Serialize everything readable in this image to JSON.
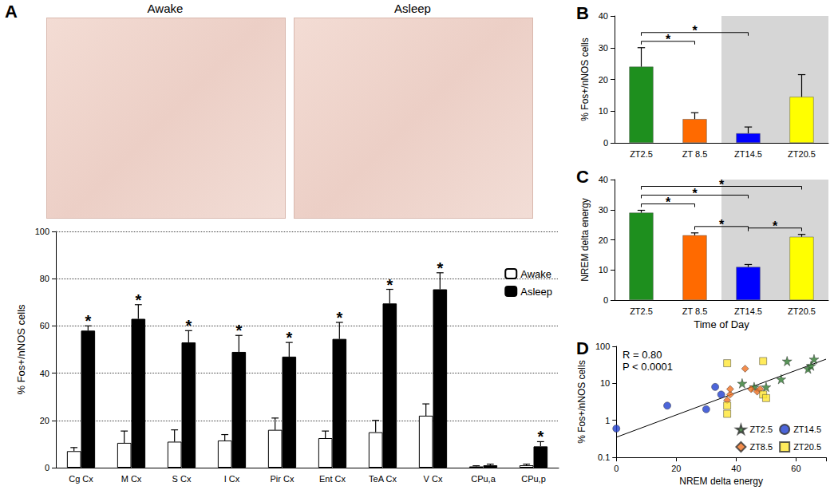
{
  "chart_data": [
    {
      "type": "bar",
      "title": "A",
      "image_titles": [
        "Awake",
        "Asleep"
      ],
      "categories": [
        "Cg Cx",
        "M Cx",
        "S Cx",
        "I Cx",
        "Pir Cx",
        "Ent Cx",
        "TeA Cx",
        "V Cx",
        "CPu,a",
        "CPu,p"
      ],
      "y_label": "% Fos+/nNOS cells",
      "series": [
        {
          "name": "Awake",
          "color": "#ffffff",
          "values": [
            7,
            10.5,
            11,
            11.5,
            16,
            12.5,
            15,
            22,
            0.5,
            1
          ],
          "errors": [
            1.5,
            5,
            5,
            2.5,
            5,
            3,
            5,
            5,
            0.3,
            0.5
          ]
        },
        {
          "name": "Asleep",
          "color": "#000000",
          "values": [
            58,
            63,
            53,
            49,
            47,
            54.5,
            69.5,
            75.5,
            1,
            9
          ],
          "errors": [
            2,
            6,
            5,
            7,
            6,
            7,
            6,
            7,
            0.5,
            2
          ],
          "significance": [
            "*",
            "*",
            "*",
            "*",
            "*",
            "*",
            "*",
            "*",
            null,
            "*"
          ]
        }
      ],
      "ylim": [
        0,
        100
      ],
      "yticks": [
        0,
        20,
        40,
        60,
        80,
        100
      ],
      "grid": true,
      "legend": "right"
    },
    {
      "type": "bar",
      "title": "B",
      "categories": [
        "ZT2.5",
        "ZT 8.5",
        "ZT14.5",
        "ZT20.5"
      ],
      "values": [
        24,
        7.5,
        3,
        14.5
      ],
      "errors": [
        6,
        2,
        2,
        7
      ],
      "colors": [
        "#1e8f1e",
        "#ff6a00",
        "#0000ff",
        "#ffff00"
      ],
      "y_label": "% Fos+/nNOS cells",
      "ylim": [
        0,
        40
      ],
      "yticks": [
        0,
        10,
        20,
        30,
        40
      ],
      "shaded": [
        "ZT14.5",
        "ZT20.5"
      ],
      "comparisons": [
        {
          "pair": [
            "ZT2.5",
            "ZT 8.5"
          ],
          "label": "*"
        },
        {
          "pair": [
            "ZT2.5",
            "ZT14.5"
          ],
          "label": "*"
        }
      ]
    },
    {
      "type": "bar",
      "title": "C",
      "categories": [
        "ZT2.5",
        "ZT 8.5",
        "ZT14.5",
        "ZT20.5"
      ],
      "values": [
        29,
        21.5,
        11,
        21
      ],
      "errors": [
        0.8,
        0.8,
        0.8,
        0.8
      ],
      "colors": [
        "#1e8f1e",
        "#ff6a00",
        "#0000ff",
        "#ffff00"
      ],
      "y_label": "NREM delta energy",
      "x_label": "Time of Day",
      "ylim": [
        0,
        40
      ],
      "yticks": [
        0,
        10,
        20,
        30,
        40
      ],
      "shaded": [
        "ZT14.5",
        "ZT20.5"
      ],
      "comparisons": [
        {
          "pair": [
            "ZT2.5",
            "ZT 8.5"
          ],
          "label": "*"
        },
        {
          "pair": [
            "ZT2.5",
            "ZT14.5"
          ],
          "label": "*"
        },
        {
          "pair": [
            "ZT2.5",
            "ZT20.5"
          ],
          "label": "*"
        },
        {
          "pair": [
            "ZT 8.5",
            "ZT14.5"
          ],
          "label": "*"
        },
        {
          "pair": [
            "ZT14.5",
            "ZT20.5"
          ],
          "label": "*"
        }
      ]
    },
    {
      "type": "scatter",
      "title": "D",
      "x_label": "NREM delta energy",
      "y_label": "% Fos+/nNOS cells",
      "log": "y",
      "xlim": [
        0,
        70
      ],
      "xticks": [
        0,
        20,
        40,
        60
      ],
      "ylim": [
        0.1,
        100
      ],
      "yticks": [
        0.1,
        1,
        10,
        100
      ],
      "annotations": [
        "R = 0.80",
        "P < 0.0001"
      ],
      "legend": "lower right",
      "series": [
        {
          "name": "ZT2.5",
          "color": "#2e7a2e",
          "marker": "star",
          "x": [
            42,
            46,
            50,
            55,
            57,
            64,
            65,
            66
          ],
          "y": [
            10,
            8,
            8,
            13,
            40,
            25,
            30,
            45
          ]
        },
        {
          "name": "ZT14.5",
          "color": "#1f3fcf",
          "marker": "circle",
          "x": [
            0,
            17,
            30,
            33,
            35
          ],
          "y": [
            0.6,
            2.5,
            2,
            8,
            5
          ]
        },
        {
          "name": "ZT8.5",
          "color": "#f07020",
          "marker": "diamond",
          "x": [
            37,
            38,
            38,
            43,
            45,
            47,
            48
          ],
          "y": [
            3.5,
            5,
            7,
            25,
            7,
            6,
            7
          ]
        },
        {
          "name": "ZT20.5",
          "color": "#ffe633",
          "marker": "square",
          "x": [
            37,
            37,
            37,
            49,
            49,
            50
          ],
          "y": [
            35,
            2.5,
            1.5,
            40,
            5,
            4
          ]
        }
      ],
      "fit": {
        "x": [
          0,
          70
        ],
        "y": [
          0.35,
          45
        ]
      }
    }
  ]
}
